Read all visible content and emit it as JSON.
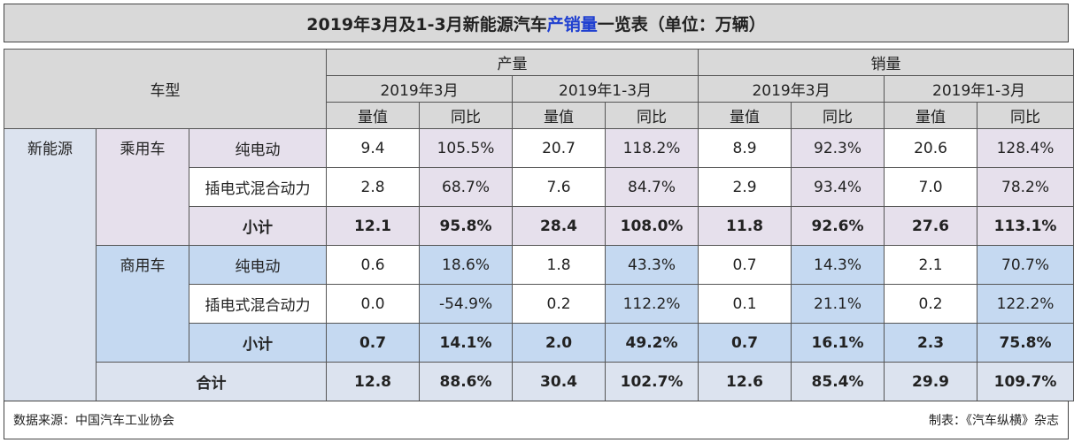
{
  "title": {
    "pre": "2019年3月及1-3月新能源汽车",
    "highlight": "产销量",
    "post": "一览表（单位：万辆）"
  },
  "header": {
    "vehicle_type": "车型",
    "production": "产量",
    "sales": "销量",
    "period_month": "2019年3月",
    "period_ytd": "2019年1-3月",
    "volume": "量值",
    "yoy": "同比"
  },
  "labels": {
    "nev": "新能源",
    "passenger": "乘用车",
    "commercial": "商用车",
    "bev": "纯电动",
    "phev": "插电式混合动力",
    "subtotal": "小计",
    "total": "合计"
  },
  "rows": {
    "pv_bev": [
      "9.4",
      "105.5%",
      "20.7",
      "118.2%",
      "8.9",
      "92.3%",
      "20.6",
      "128.4%"
    ],
    "pv_phev": [
      "2.8",
      "68.7%",
      "7.6",
      "84.7%",
      "2.9",
      "93.4%",
      "7.0",
      "78.2%"
    ],
    "pv_subtotal": [
      "12.1",
      "95.8%",
      "28.4",
      "108.0%",
      "11.8",
      "92.6%",
      "27.6",
      "113.1%"
    ],
    "cv_bev": [
      "0.6",
      "18.6%",
      "1.8",
      "43.3%",
      "0.7",
      "14.3%",
      "2.1",
      "70.7%"
    ],
    "cv_phev": [
      "0.0",
      "-54.9%",
      "0.2",
      "112.2%",
      "0.1",
      "21.1%",
      "0.2",
      "122.2%"
    ],
    "cv_subtotal": [
      "0.7",
      "14.1%",
      "2.0",
      "49.2%",
      "0.7",
      "16.1%",
      "2.3",
      "75.8%"
    ],
    "total": [
      "12.8",
      "88.6%",
      "30.4",
      "102.7%",
      "12.6",
      "85.4%",
      "29.9",
      "109.7%"
    ]
  },
  "footer": {
    "source": "数据来源：中国汽车工业协会",
    "credit": "制表：《汽车纵横》杂志"
  },
  "colors": {
    "header_bg": "#d9d9d9",
    "nev_bg": "#dce3ef",
    "passenger_bg": "#e6e0ec",
    "commercial_bg": "#c5d9f1",
    "title_highlight": "#1f3fd0"
  }
}
